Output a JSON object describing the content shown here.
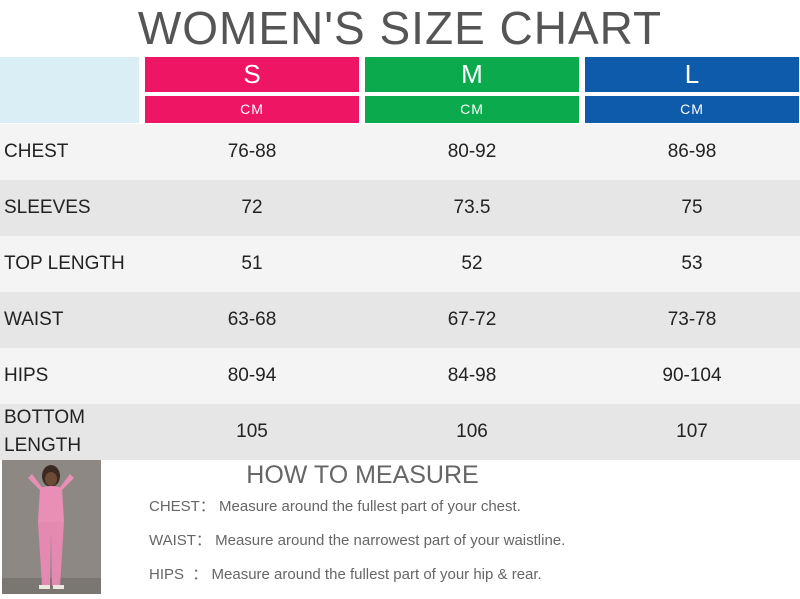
{
  "title": "WOMEN'S SIZE CHART",
  "sizes": [
    {
      "label": "S",
      "unit": "CM",
      "color": "#ee1565"
    },
    {
      "label": "M",
      "unit": "CM",
      "color": "#0aaa4d"
    },
    {
      "label": "L",
      "unit": "CM",
      "color": "#0f5bab"
    }
  ],
  "rows": [
    {
      "label": "CHEST",
      "values": [
        "76-88",
        "80-92",
        "86-98"
      ]
    },
    {
      "label": "SLEEVES",
      "values": [
        "72",
        "73.5",
        "75"
      ]
    },
    {
      "label": "TOP LENGTH",
      "values": [
        "51",
        "52",
        "53"
      ]
    },
    {
      "label": "WAIST",
      "values": [
        "63-68",
        "67-72",
        "73-78"
      ]
    },
    {
      "label": "HIPS",
      "values": [
        "80-94",
        "84-98",
        "90-104"
      ]
    },
    {
      "label": "BOTTOM LENGTH",
      "values": [
        "105",
        "106",
        "107"
      ]
    }
  ],
  "row_colors": [
    "#f4f4f4",
    "#e6e6e6"
  ],
  "how_to": {
    "title": "HOW TO MEASURE",
    "notes": [
      {
        "label": "CHEST：",
        "text": "Measure around the fullest part of your chest."
      },
      {
        "label": "WAIST：",
        "text": "Measure around the narrowest part of your waistline."
      },
      {
        "label": "HIPS  ：",
        "text": "Measure around the fullest part of your hip & rear."
      }
    ]
  }
}
